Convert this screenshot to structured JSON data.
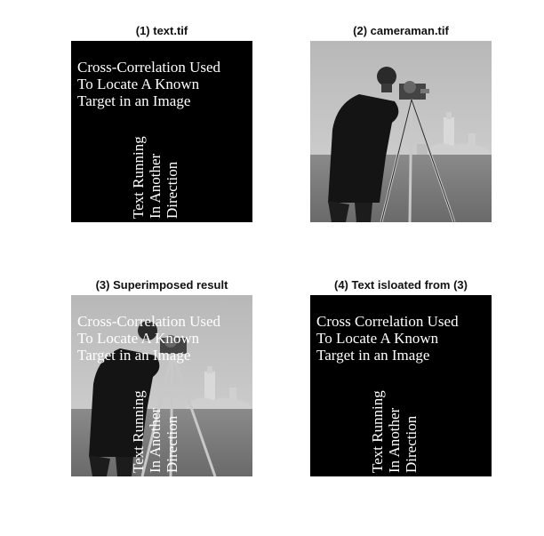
{
  "panels": {
    "p1": {
      "title": "(1) text.tif"
    },
    "p2": {
      "title": "(2) cameraman.tif"
    },
    "p3": {
      "title": "(3) Superimposed result"
    },
    "p4": {
      "title": "(4) Text isloated from (3)"
    }
  },
  "text_image": {
    "lines": [
      "Cross-Correlation Used",
      "To Locate A Known",
      "Target in an Image"
    ],
    "vertical_lines": [
      "Text Running",
      "In Another",
      "Direction"
    ]
  },
  "text_image_isolated": {
    "lines": [
      "Cross Correlation Used",
      "To Locate A Known",
      "Target in an Image"
    ],
    "vertical_lines": [
      "Text Running",
      "In Another",
      "Direction"
    ]
  },
  "colors": {
    "background": "#ffffff",
    "text_white": "#ffffff",
    "panel_black": "#000000"
  }
}
